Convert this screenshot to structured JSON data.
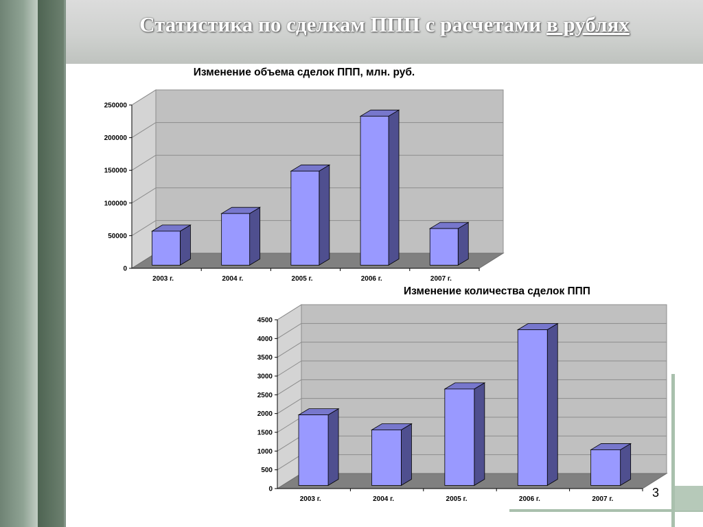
{
  "slide": {
    "title_main": "Статистика по сделкам ППП с расчетами ",
    "title_underlined": "в рублях",
    "page_number": "3"
  },
  "colors": {
    "bar_front": "#9999ff",
    "bar_side": "#4f4f8f",
    "bar_top": "#7777cc",
    "wall": "#c0c0c0",
    "floor": "#808080",
    "grid": "#8c8c8c",
    "side_wall": "#d4d4d4"
  },
  "chart_data": [
    {
      "type": "bar",
      "title": "Изменение объема сделок ППП, млн. руб.",
      "categories": [
        "2003 г.",
        "2004 г.",
        "2005 г.",
        "2006 г.",
        "2007 г."
      ],
      "values": [
        52000,
        79000,
        144000,
        228000,
        56000
      ],
      "ylim": [
        0,
        250000
      ],
      "yticks": [
        "0",
        "50000",
        "100000",
        "150000",
        "200000",
        "250000"
      ],
      "grid": true,
      "legend": "none",
      "xlabel": "",
      "ylabel": ""
    },
    {
      "type": "bar",
      "title": "Изменение количества сделок ППП",
      "categories": [
        "2003 г.",
        "2004 г.",
        "2005 г.",
        "2006 г.",
        "2007 г."
      ],
      "values": [
        1880,
        1480,
        2570,
        4150,
        950
      ],
      "ylim": [
        0,
        4500
      ],
      "yticks": [
        "0",
        "500",
        "1000",
        "1500",
        "2000",
        "2500",
        "3000",
        "3500",
        "4000",
        "4500"
      ],
      "grid": true,
      "legend": "none",
      "xlabel": "",
      "ylabel": ""
    }
  ]
}
